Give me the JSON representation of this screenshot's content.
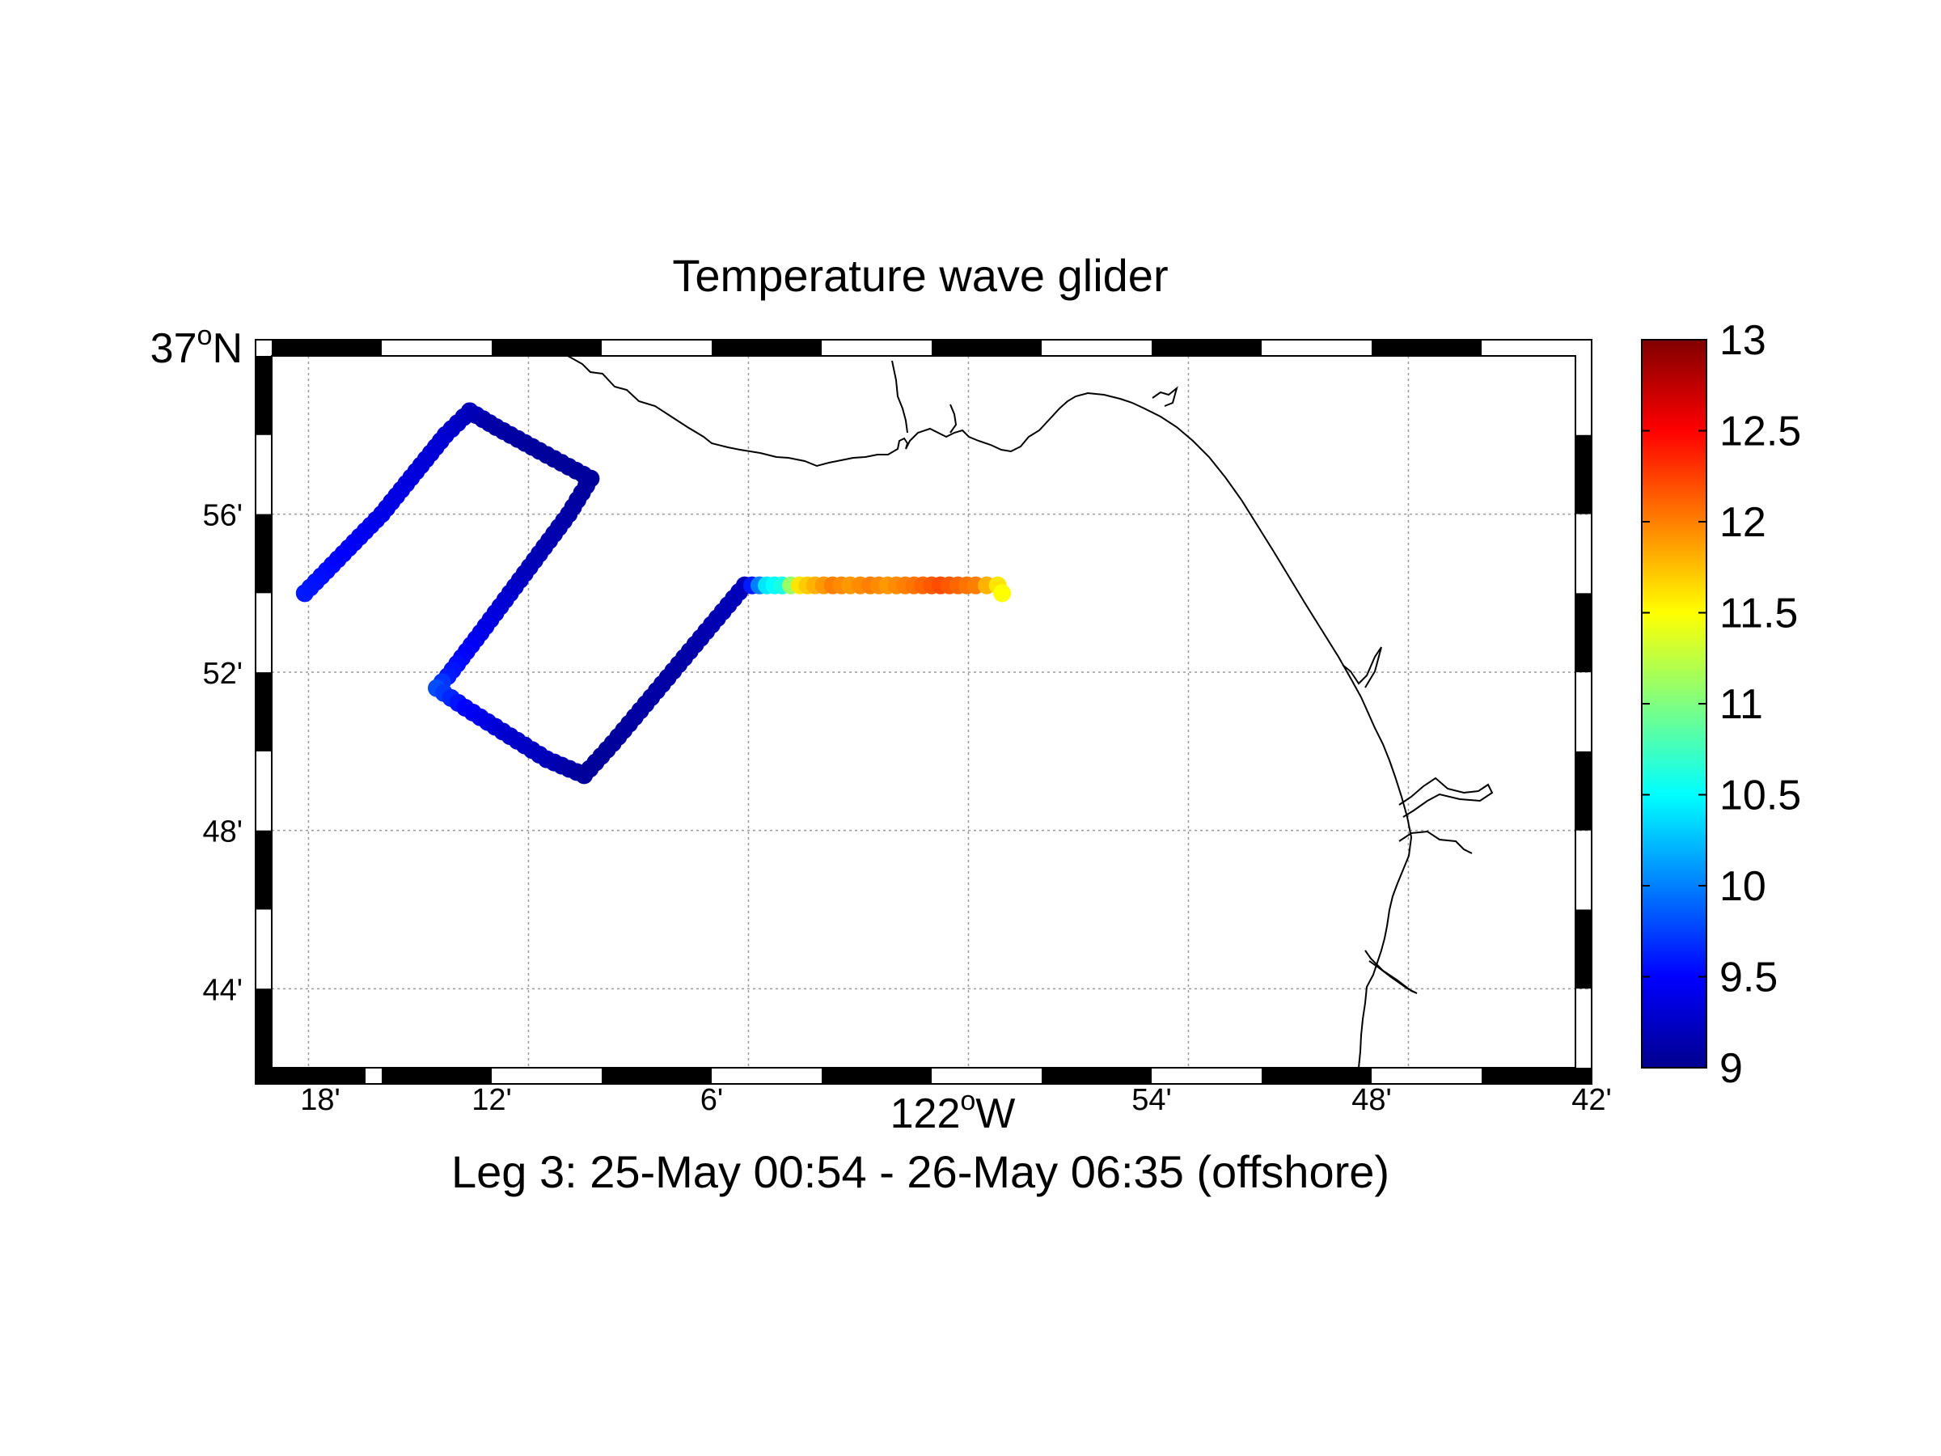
{
  "title": "Temperature wave glider",
  "subtitle": "Leg 3: 25-May 00:54 - 26-May 06:35 (offshore)",
  "axes": {
    "x_label_main": "122",
    "x_label_sup": "o",
    "x_label_suffix": "W",
    "y_label_main": "37",
    "y_label_sup": "o",
    "y_label_suffix": "N",
    "x_ticks": [
      "18'",
      "12'",
      "6'",
      "54'",
      "48'",
      "42'"
    ],
    "y_ticks": [
      "56'",
      "52'",
      "48'",
      "44'"
    ]
  },
  "colorbar": {
    "min": 9,
    "max": 13,
    "ticks": [
      "13",
      "12.5",
      "12",
      "11.5",
      "11",
      "10.5",
      "10",
      "9.5",
      "9"
    ]
  },
  "colors": {
    "coastline": "#000000",
    "grid": "#9a9a9a",
    "frame": "#000000"
  },
  "chart_data": {
    "type": "scatter",
    "xlim": [
      -122.3,
      -121.7
    ],
    "ylim": [
      36.7,
      37.0
    ],
    "x_unit": "degrees longitude",
    "y_unit": "degrees latitude",
    "color_variable_range": [
      9,
      13
    ],
    "track": [
      {
        "lon": -122.285,
        "lat": 36.9,
        "temp": 9.6
      },
      {
        "lon": -122.25,
        "lat": 36.9333,
        "temp": 9.4
      },
      {
        "lon": -122.221,
        "lat": 36.9667,
        "temp": 9.3
      },
      {
        "lon": -122.21,
        "lat": 36.9767,
        "temp": 9.2
      },
      {
        "lon": -122.198,
        "lat": 36.97,
        "temp": 9.1
      },
      {
        "lon": -122.175,
        "lat": 36.9583,
        "temp": 9.05
      },
      {
        "lon": -122.155,
        "lat": 36.9483,
        "temp": 9.05
      },
      {
        "lon": -122.165,
        "lat": 36.9333,
        "temp": 9.1
      },
      {
        "lon": -122.185,
        "lat": 36.9083,
        "temp": 9.2
      },
      {
        "lon": -122.205,
        "lat": 36.8833,
        "temp": 9.4
      },
      {
        "lon": -122.22,
        "lat": 36.865,
        "temp": 9.6
      },
      {
        "lon": -122.225,
        "lat": 36.86,
        "temp": 9.8
      },
      {
        "lon": -122.212,
        "lat": 36.8517,
        "temp": 9.5
      },
      {
        "lon": -122.195,
        "lat": 36.8417,
        "temp": 9.3
      },
      {
        "lon": -122.175,
        "lat": 36.83,
        "temp": 9.2
      },
      {
        "lon": -122.158,
        "lat": 36.8233,
        "temp": 9.05
      },
      {
        "lon": -122.145,
        "lat": 36.8367,
        "temp": 9.05
      },
      {
        "lon": -122.13,
        "lat": 36.8533,
        "temp": 9.1
      },
      {
        "lon": -122.115,
        "lat": 36.87,
        "temp": 9.1
      },
      {
        "lon": -122.1,
        "lat": 36.8867,
        "temp": 9.15
      },
      {
        "lon": -122.085,
        "lat": 36.9033,
        "temp": 9.2
      },
      {
        "lon": -122.075,
        "lat": 36.9033,
        "temp": 10.4
      },
      {
        "lon": -122.068,
        "lat": 36.9033,
        "temp": 10.6
      },
      {
        "lon": -122.06,
        "lat": 36.9033,
        "temp": 11.6
      },
      {
        "lon": -122.053,
        "lat": 36.9033,
        "temp": 11.8
      },
      {
        "lon": -122.045,
        "lat": 36.9033,
        "temp": 12.0
      },
      {
        "lon": -122.037,
        "lat": 36.9033,
        "temp": 11.9
      },
      {
        "lon": -122.028,
        "lat": 36.9033,
        "temp": 12.0
      },
      {
        "lon": -122.02,
        "lat": 36.9033,
        "temp": 11.9
      },
      {
        "lon": -122.012,
        "lat": 36.9033,
        "temp": 12.0
      },
      {
        "lon": -122.004,
        "lat": 36.9033,
        "temp": 12.1
      },
      {
        "lon": -121.996,
        "lat": 36.9033,
        "temp": 12.2
      },
      {
        "lon": -121.988,
        "lat": 36.9033,
        "temp": 12.1
      },
      {
        "lon": -121.98,
        "lat": 36.9033,
        "temp": 12.0
      },
      {
        "lon": -121.975,
        "lat": 36.9033,
        "temp": 11.8
      },
      {
        "lon": -121.97,
        "lat": 36.9033,
        "temp": 11.6
      },
      {
        "lon": -121.968,
        "lat": 36.9,
        "temp": 11.5
      }
    ]
  }
}
